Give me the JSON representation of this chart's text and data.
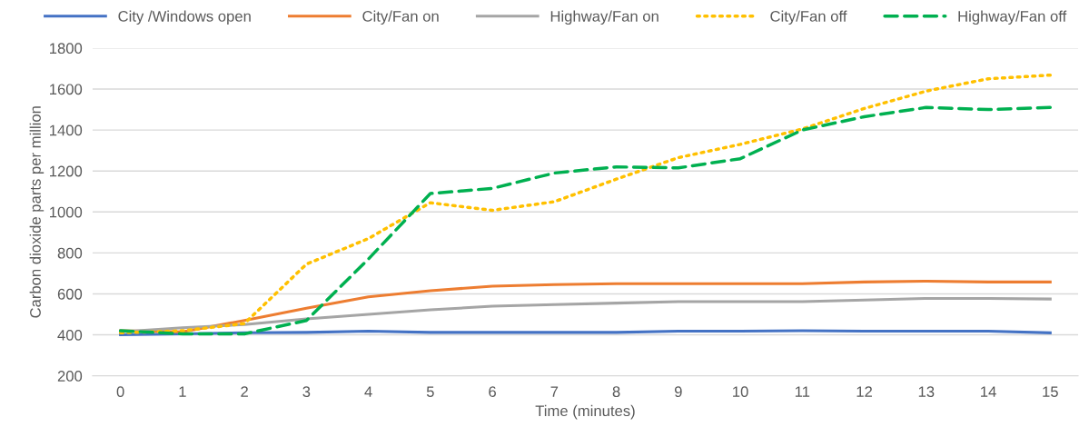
{
  "chart_data": {
    "type": "line",
    "xlabel": "Time (minutes)",
    "ylabel": "Carbon dioxide parts per million",
    "categories": [
      "0",
      "1",
      "2",
      "3",
      "4",
      "5",
      "6",
      "7",
      "8",
      "9",
      "10",
      "11",
      "12",
      "13",
      "14",
      "15"
    ],
    "ylim": [
      200,
      1800
    ],
    "yticks": [
      200,
      400,
      600,
      800,
      1000,
      1200,
      1400,
      1600,
      1800
    ],
    "grid": "y",
    "legend": "top",
    "marker": "none",
    "series": [
      {
        "name": "City /Windows open",
        "color": "#4472c4",
        "line_style": "solid",
        "values": [
          400,
          405,
          410,
          412,
          418,
          412,
          412,
          412,
          412,
          418,
          418,
          420,
          418,
          418,
          418,
          410
        ]
      },
      {
        "name": "City/Fan on",
        "color": "#ed7d31",
        "line_style": "solid",
        "values": [
          420,
          415,
          470,
          530,
          585,
          615,
          638,
          645,
          650,
          650,
          650,
          650,
          658,
          662,
          658,
          658
        ]
      },
      {
        "name": "Highway/Fan on",
        "color": "#a5a5a5",
        "line_style": "solid",
        "values": [
          415,
          435,
          450,
          478,
          500,
          522,
          540,
          548,
          555,
          562,
          562,
          562,
          570,
          578,
          578,
          575
        ]
      },
      {
        "name": "City/Fan off",
        "color": "#ffc000",
        "line_style": "dotted",
        "values": [
          410,
          420,
          455,
          745,
          870,
          1045,
          1008,
          1050,
          1160,
          1265,
          1330,
          1405,
          1505,
          1590,
          1650,
          1668
        ]
      },
      {
        "name": "Highway/Fan off",
        "color": "#00b050",
        "line_style": "dashed",
        "values": [
          420,
          405,
          405,
          470,
          770,
          1090,
          1115,
          1190,
          1220,
          1215,
          1260,
          1400,
          1465,
          1510,
          1500,
          1510
        ]
      }
    ]
  }
}
